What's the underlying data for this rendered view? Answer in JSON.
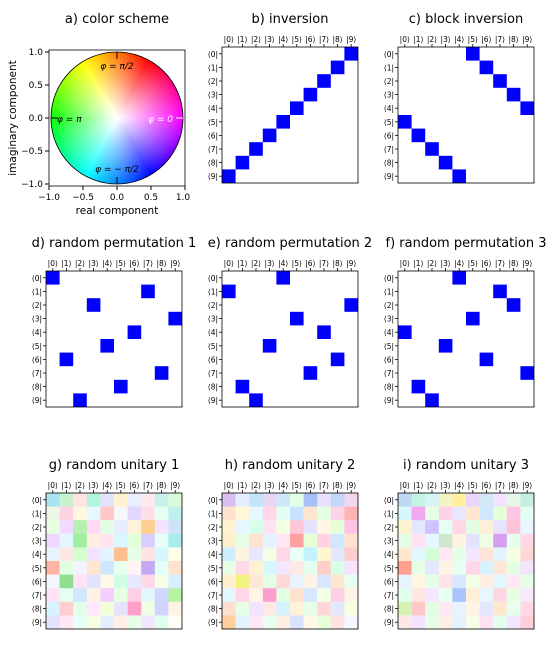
{
  "chart_data": [
    {
      "type": "other",
      "title": "a) color scheme",
      "xlabel": "real component",
      "ylabel": "imaginary component",
      "xlim": [
        -1.0,
        1.0
      ],
      "ylim": [
        -1.0,
        1.0
      ],
      "xticks": [
        "−1.0",
        "−0.5",
        "0.0",
        "0.5",
        "1.0"
      ],
      "yticks": [
        "1.0",
        "0.5",
        "0.0",
        "−0.5",
        "−1.0"
      ],
      "annotations": [
        "φ = π/2",
        "φ = π",
        "φ = 0",
        "φ = − π/2"
      ],
      "legend_placement": "none"
    },
    {
      "type": "heatmap",
      "title": "b) inversion",
      "xlabels": [
        "|0⟩",
        "|1⟩",
        "|2⟩",
        "|3⟩",
        "|4⟩",
        "|5⟩",
        "|6⟩",
        "|7⟩",
        "|8⟩",
        "|9⟩"
      ],
      "ylabels": [
        "⟨0|",
        "⟨1|",
        "⟨2|",
        "⟨3|",
        "⟨4|",
        "⟨5|",
        "⟨6|",
        "⟨7|",
        "⟨8|",
        "⟨9|"
      ],
      "ones": [
        [
          0,
          9
        ],
        [
          1,
          8
        ],
        [
          2,
          7
        ],
        [
          3,
          6
        ],
        [
          4,
          5
        ],
        [
          5,
          4
        ],
        [
          6,
          3
        ],
        [
          7,
          2
        ],
        [
          8,
          1
        ],
        [
          9,
          0
        ]
      ],
      "color": "#0000ff"
    },
    {
      "type": "heatmap",
      "title": "c) block inversion",
      "xlabels": [
        "|0⟩",
        "|1⟩",
        "|2⟩",
        "|3⟩",
        "|4⟩",
        "|5⟩",
        "|6⟩",
        "|7⟩",
        "|8⟩",
        "|9⟩"
      ],
      "ylabels": [
        "⟨0|",
        "⟨1|",
        "⟨2|",
        "⟨3|",
        "⟨4|",
        "⟨5|",
        "⟨6|",
        "⟨7|",
        "⟨8|",
        "⟨9|"
      ],
      "ones": [
        [
          0,
          5
        ],
        [
          1,
          6
        ],
        [
          2,
          7
        ],
        [
          3,
          8
        ],
        [
          4,
          9
        ],
        [
          5,
          0
        ],
        [
          6,
          1
        ],
        [
          7,
          2
        ],
        [
          8,
          3
        ],
        [
          9,
          4
        ]
      ],
      "color": "#0000ff"
    },
    {
      "type": "heatmap",
      "title": "d) random permutation 1",
      "xlabels": [
        "|0⟩",
        "|1⟩",
        "|2⟩",
        "|3⟩",
        "|4⟩",
        "|5⟩",
        "|6⟩",
        "|7⟩",
        "|8⟩",
        "|9⟩"
      ],
      "ylabels": [
        "⟨0|",
        "⟨1|",
        "⟨2|",
        "⟨3|",
        "⟨4|",
        "⟨5|",
        "⟨6|",
        "⟨7|",
        "⟨8|",
        "⟨9|"
      ],
      "ones": [
        [
          0,
          0
        ],
        [
          1,
          7
        ],
        [
          2,
          3
        ],
        [
          3,
          9
        ],
        [
          4,
          6
        ],
        [
          5,
          4
        ],
        [
          6,
          1
        ],
        [
          7,
          8
        ],
        [
          8,
          5
        ],
        [
          9,
          2
        ]
      ],
      "color": "#0000ff"
    },
    {
      "type": "heatmap",
      "title": "e) random permutation 2",
      "xlabels": [
        "|0⟩",
        "|1⟩",
        "|2⟩",
        "|3⟩",
        "|4⟩",
        "|5⟩",
        "|6⟩",
        "|7⟩",
        "|8⟩",
        "|9⟩"
      ],
      "ylabels": [
        "⟨0|",
        "⟨1|",
        "⟨2|",
        "⟨3|",
        "⟨4|",
        "⟨5|",
        "⟨6|",
        "⟨7|",
        "⟨8|",
        "⟨9|"
      ],
      "ones": [
        [
          0,
          4
        ],
        [
          1,
          0
        ],
        [
          2,
          9
        ],
        [
          3,
          5
        ],
        [
          4,
          7
        ],
        [
          5,
          3
        ],
        [
          6,
          8
        ],
        [
          7,
          6
        ],
        [
          8,
          1
        ],
        [
          9,
          2
        ]
      ],
      "color": "#0000ff"
    },
    {
      "type": "heatmap",
      "title": "f) random permutation 3",
      "xlabels": [
        "|0⟩",
        "|1⟩",
        "|2⟩",
        "|3⟩",
        "|4⟩",
        "|5⟩",
        "|6⟩",
        "|7⟩",
        "|8⟩",
        "|9⟩"
      ],
      "ylabels": [
        "⟨0|",
        "⟨1|",
        "⟨2|",
        "⟨3|",
        "⟨4|",
        "⟨5|",
        "⟨6|",
        "⟨7|",
        "⟨8|",
        "⟨9|"
      ],
      "ones": [
        [
          0,
          4
        ],
        [
          1,
          7
        ],
        [
          2,
          8
        ],
        [
          3,
          5
        ],
        [
          4,
          0
        ],
        [
          5,
          3
        ],
        [
          6,
          6
        ],
        [
          7,
          9
        ],
        [
          8,
          1
        ],
        [
          9,
          2
        ]
      ],
      "color": "#0000ff"
    },
    {
      "type": "heatmap",
      "title": "g) random unitary 1",
      "xlabels": [
        "|0⟩",
        "|1⟩",
        "|2⟩",
        "|3⟩",
        "|4⟩",
        "|5⟩",
        "|6⟩",
        "|7⟩",
        "|8⟩",
        "|9⟩"
      ],
      "ylabels": [
        "⟨0|",
        "⟨1|",
        "⟨2|",
        "⟨3|",
        "⟨4|",
        "⟨5|",
        "⟨6|",
        "⟨7|",
        "⟨8|",
        "⟨9|"
      ],
      "cells": [
        [
          "#a9e3ef",
          "#c9f3ce",
          "#ffe4e1",
          "#b3f5dc",
          "#e3e3fb",
          "#fff3cf",
          "#e9efff",
          "#ffe8ee",
          "#c9efe9",
          "#d9fbd9"
        ],
        [
          "#eef7e7",
          "#ffd3e3",
          "#fff7dd",
          "#e7f7ff",
          "#ffc7c7",
          "#f7f7f7",
          "#e3d7ff",
          "#ffdfe7",
          "#e7fff3",
          "#bff0ef"
        ],
        [
          "#e7ffe3",
          "#f3d9ff",
          "#b7f0b3",
          "#ffd9f3",
          "#e3ffe3",
          "#e7ecff",
          "#fff3d9",
          "#ffcf8f",
          "#f3e3ff",
          "#cfe3f7"
        ],
        [
          "#efd7ff",
          "#e3f7ff",
          "#9fef9f",
          "#ffefe3",
          "#ffe3ef",
          "#d9f7ff",
          "#e3ffd9",
          "#d7cfff",
          "#e7fff7",
          "#a9ecec"
        ],
        [
          "#e7f3ff",
          "#ffe7e3",
          "#d3ffcf",
          "#f3e3ff",
          "#e3f3ff",
          "#ffbf8f",
          "#e7ffe7",
          "#ffe3e3",
          "#d7f7ff",
          "#ffffe7"
        ],
        [
          "#ffb3a3",
          "#e3ffe3",
          "#f3f3ff",
          "#ffe7cf",
          "#cfe7ff",
          "#e7ffef",
          "#fff3f3",
          "#c3a9f3",
          "#e3fff7",
          "#ffe3cf"
        ],
        [
          "#f3f7ff",
          "#8fdf8f",
          "#ffe3f3",
          "#e3e3ff",
          "#fff7e7",
          "#cfffe7",
          "#e7e7ff",
          "#ffd9e7",
          "#f3ffe7",
          "#d7efff"
        ],
        [
          "#ffe3f7",
          "#e7fff3",
          "#cfe7ff",
          "#fff3e7",
          "#f3cfff",
          "#e7ffe3",
          "#ffcfe3",
          "#e3f7ff",
          "#cfd7ff",
          "#b7f3a3"
        ],
        [
          "#d7f3ff",
          "#ffcfcf",
          "#e3ffe7",
          "#ffe7ff",
          "#f3ffd7",
          "#e7e3ff",
          "#ff9fc7",
          "#efffe3",
          "#cfd3ff",
          "#fff3e3"
        ],
        [
          "#e3e3ff",
          "#ffe7f3",
          "#e7fff7",
          "#f7ffe3",
          "#e3efff",
          "#ffefe7",
          "#e7ffe7",
          "#f3e7ff",
          "#dfffef",
          "#fffff7"
        ]
      ]
    },
    {
      "type": "heatmap",
      "title": "h) random unitary 2",
      "xlabels": [
        "|0⟩",
        "|1⟩",
        "|2⟩",
        "|3⟩",
        "|4⟩",
        "|5⟩",
        "|6⟩",
        "|7⟩",
        "|8⟩",
        "|9⟩"
      ],
      "ylabels": [
        "⟨0|",
        "⟨1|",
        "⟨2|",
        "⟨3|",
        "⟨4|",
        "⟨5|",
        "⟨6|",
        "⟨7|",
        "⟨8|",
        "⟨9|"
      ],
      "cells": [
        [
          "#d9bff0",
          "#e3efff",
          "#c3e3f7",
          "#e7d7f3",
          "#cfe7f7",
          "#e3ffe7",
          "#a9bff7",
          "#e7e3ff",
          "#c3d7f7",
          "#f0d7f0"
        ],
        [
          "#ffe3cf",
          "#fff7d7",
          "#e7f7ff",
          "#ffd7e7",
          "#e3fff3",
          "#c7e3ff",
          "#ffe7cf",
          "#e3ffe3",
          "#ffd3e7",
          "#ffb3b3"
        ],
        [
          "#fff3d3",
          "#e7f7ff",
          "#d7ffe7",
          "#ffe3f3",
          "#f3ffe3",
          "#ffc7d7",
          "#e3e3ff",
          "#fff7e3",
          "#e7ffd7",
          "#ffc3e7"
        ],
        [
          "#ffefcf",
          "#e7ffe7",
          "#ffe3cf",
          "#e3f3ff",
          "#ffe7f3",
          "#ff9f9f",
          "#e7ffd7",
          "#ffd3e3",
          "#cfe7ff",
          "#ffe3cf"
        ],
        [
          "#cfefff",
          "#fff3e3",
          "#e7e7ff",
          "#f3ffe7",
          "#ffd7e7",
          "#e7fff7",
          "#c3f3ff",
          "#fff7cf",
          "#e3e7ff",
          "#ffcfcf"
        ],
        [
          "#e7ffe3",
          "#ffd9e7",
          "#fff3cf",
          "#d7f7ff",
          "#f3e7ff",
          "#ffe7e3",
          "#e3ffef",
          "#ffcfc7",
          "#d7ffe3",
          "#f7e3ff"
        ],
        [
          "#ffefcf",
          "#f3f37f",
          "#ffe7d7",
          "#e3ffe3",
          "#ffd7d7",
          "#e7f3ff",
          "#fff3e7",
          "#d7e7ff",
          "#ffe7cf",
          "#e7fff3"
        ],
        [
          "#e3f7ff",
          "#ffd7e7",
          "#fff7e3",
          "#ff9fcf",
          "#e3ffe3",
          "#ffe3cf",
          "#d7e7ff",
          "#f3ffe7",
          "#ffcfe3",
          "#fff3e7"
        ],
        [
          "#ffdfcf",
          "#e7ffe7",
          "#f3e3ff",
          "#ffe7e3",
          "#d3f3ff",
          "#fff3d7",
          "#e7ffe7",
          "#ffd7d7",
          "#e3e7ff",
          "#f7ffe3"
        ],
        [
          "#ffcf9f",
          "#e3f3ff",
          "#ffe7f3",
          "#e7ffef",
          "#ffefe3",
          "#d7e3ff",
          "#fff7e7",
          "#e7ffd7",
          "#ffe3e3",
          "#f3f7ff"
        ]
      ]
    },
    {
      "type": "heatmap",
      "title": "i) random unitary 3",
      "xlabels": [
        "|0⟩",
        "|1⟩",
        "|2⟩",
        "|3⟩",
        "|4⟩",
        "|5⟩",
        "|6⟩",
        "|7⟩",
        "|8⟩",
        "|9⟩"
      ],
      "ylabels": [
        "⟨0|",
        "⟨1|",
        "⟨2|",
        "⟨3|",
        "⟨4|",
        "⟨5|",
        "⟨6|",
        "⟨7|",
        "⟨8|",
        "⟨9|"
      ],
      "cells": [
        [
          "#bfd7ef",
          "#c3f3e3",
          "#d7f3f3",
          "#f3f3c3",
          "#ffef9f",
          "#e7d7ff",
          "#d3e7f7",
          "#f3e3ff",
          "#e7f7e7",
          "#c3f0e3"
        ],
        [
          "#d7f7ff",
          "#f0a9f0",
          "#e7ffe7",
          "#ffd3e7",
          "#e7e7ff",
          "#ffe7cf",
          "#cfe7ff",
          "#e7ffd7",
          "#ffc7e3",
          "#e3ffef"
        ],
        [
          "#fff3cf",
          "#e3e7ff",
          "#cfc3ff",
          "#e7fff3",
          "#ffd7e7",
          "#e3ffe3",
          "#ffefd7",
          "#e7e3ff",
          "#ffc3d7",
          "#e7f7ff"
        ],
        [
          "#e3ffe3",
          "#ffe3f3",
          "#e7f7ff",
          "#cfe7cf",
          "#fff3e3",
          "#e3e3ff",
          "#efffe7",
          "#d79fef",
          "#e3ffef",
          "#ffd7e7"
        ],
        [
          "#ffe7cf",
          "#e3f7ff",
          "#d3ffd7",
          "#ffe7f3",
          "#e7ffe7",
          "#f3e7ff",
          "#ffe3d7",
          "#e3f3ff",
          "#f7ffe3",
          "#ffd7d7"
        ],
        [
          "#ff9f8f",
          "#e7ffe7",
          "#e3e7ff",
          "#fff3e3",
          "#e7ffef",
          "#ffd7e7",
          "#d7f3ff",
          "#ffe7d7",
          "#e3ffe3",
          "#f3e3ff"
        ],
        [
          "#e7f3ff",
          "#fff7e3",
          "#e3ffe7",
          "#ffe3e7",
          "#d7e7ff",
          "#f3ffe3",
          "#ffefe3",
          "#e3f7ff",
          "#ffe7f3",
          "#e7ffe7"
        ],
        [
          "#e3ffef",
          "#ffe7e3",
          "#f3e7ff",
          "#e7fff3",
          "#a9c3ff",
          "#ffefd7",
          "#e7f7ff",
          "#ffd7e3",
          "#e7ffe3",
          "#f7e7ff"
        ],
        [
          "#d3f3b3",
          "#ffc7c7",
          "#e3ffe3",
          "#ffe7f3",
          "#e7f3ff",
          "#fff3e3",
          "#e3e7ff",
          "#ffe7cf",
          "#e7ffef",
          "#ffd7e7"
        ],
        [
          "#ffe7e7",
          "#f3e3ff",
          "#e7ffe7",
          "#ffefe3",
          "#e3f3ff",
          "#f7ffe7",
          "#ffe3f3",
          "#e3ffef",
          "#f3e7ff",
          "#ffcfd7"
        ]
      ]
    }
  ]
}
